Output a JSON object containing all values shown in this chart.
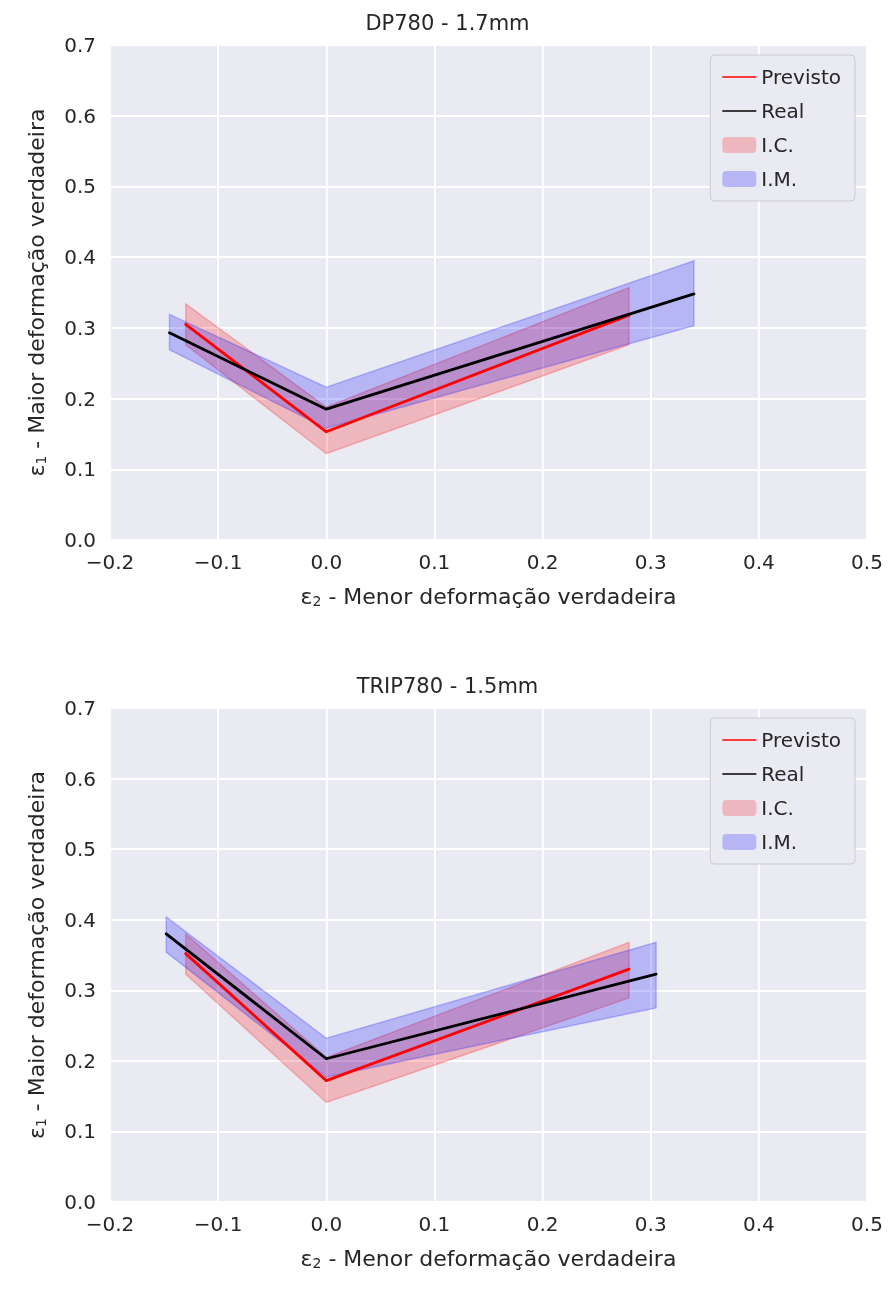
{
  "chart_data": [
    {
      "type": "line",
      "title": "DP780 - 1.7mm",
      "xlabel": "ε$_{2}$ - Menor deformação verdadeira",
      "ylabel": "ε$_{1}$ - Maior deformação verdadeira",
      "xlim": [
        -0.2,
        0.5
      ],
      "ylim": [
        0,
        0.7
      ],
      "grid": true,
      "legend": "top right",
      "marker": "none",
      "line_style": "solid",
      "xticks": [
        {
          "value": -0.2,
          "label": "−0.2"
        },
        {
          "value": -0.1,
          "label": "−0.1"
        },
        {
          "value": 0,
          "label": "0.0"
        },
        {
          "value": 0.1,
          "label": "0.1"
        },
        {
          "value": 0.2,
          "label": "0.2"
        },
        {
          "value": 0.3,
          "label": "0.3"
        },
        {
          "value": 0.4,
          "label": "0.4"
        },
        {
          "value": 0.5,
          "label": "0.5"
        }
      ],
      "yticks": [
        {
          "value": 0,
          "label": "0.0"
        },
        {
          "value": 0.1,
          "label": "0.1"
        },
        {
          "value": 0.2,
          "label": "0.2"
        },
        {
          "value": 0.3,
          "label": "0.3"
        },
        {
          "value": 0.4,
          "label": "0.4"
        },
        {
          "value": 0.5,
          "label": "0.5"
        },
        {
          "value": 0.6,
          "label": "0.6"
        },
        {
          "value": 0.7,
          "label": "0.7"
        }
      ],
      "series": [
        {
          "name": "Previsto",
          "type": "line",
          "color": "#ff0000",
          "x": [
            -0.13,
            0,
            0.28
          ],
          "values": [
            0.305,
            0.153,
            0.318
          ]
        },
        {
          "name": "Real",
          "type": "line",
          "color": "#000000",
          "x": [
            -0.145,
            0,
            0.34
          ],
          "values": [
            0.293,
            0.185,
            0.348
          ]
        },
        {
          "name": "I.C.",
          "type": "area",
          "color": "#ff0000",
          "x": [
            -0.13,
            0,
            0.28
          ],
          "values": [
            null,
            null,
            null
          ],
          "lower": [
            0.276,
            0.122,
            0.276
          ],
          "upper": [
            0.334,
            0.188,
            0.357
          ]
        },
        {
          "name": "I.M.",
          "type": "area",
          "color": "#0000ff",
          "x": [
            -0.145,
            0,
            0.34
          ],
          "values": [
            null,
            null,
            null
          ],
          "lower": [
            0.269,
            0.158,
            0.303
          ],
          "upper": [
            0.319,
            0.216,
            0.395
          ]
        }
      ]
    },
    {
      "type": "line",
      "title": "TRIP780 - 1.5mm",
      "xlabel": "ε$_{2}$ - Menor deformação verdadeira",
      "ylabel": "ε$_{1}$ - Maior deformação verdadeira",
      "xlim": [
        -0.2,
        0.5
      ],
      "ylim": [
        0,
        0.7
      ],
      "grid": true,
      "legend": "top right",
      "marker": "none",
      "line_style": "solid",
      "xticks": [
        {
          "value": -0.2,
          "label": "−0.2"
        },
        {
          "value": -0.1,
          "label": "−0.1"
        },
        {
          "value": 0,
          "label": "0.0"
        },
        {
          "value": 0.1,
          "label": "0.1"
        },
        {
          "value": 0.2,
          "label": "0.2"
        },
        {
          "value": 0.3,
          "label": "0.3"
        },
        {
          "value": 0.4,
          "label": "0.4"
        },
        {
          "value": 0.5,
          "label": "0.5"
        }
      ],
      "yticks": [
        {
          "value": 0,
          "label": "0.0"
        },
        {
          "value": 0.1,
          "label": "0.1"
        },
        {
          "value": 0.2,
          "label": "0.2"
        },
        {
          "value": 0.3,
          "label": "0.3"
        },
        {
          "value": 0.4,
          "label": "0.4"
        },
        {
          "value": 0.5,
          "label": "0.5"
        },
        {
          "value": 0.6,
          "label": "0.6"
        },
        {
          "value": 0.7,
          "label": "0.7"
        }
      ],
      "series": [
        {
          "name": "Previsto",
          "type": "line",
          "color": "#ff0000",
          "x": [
            -0.13,
            0,
            0.28
          ],
          "values": [
            0.352,
            0.172,
            0.33
          ]
        },
        {
          "name": "Real",
          "type": "line",
          "color": "#000000",
          "x": [
            -0.148,
            0,
            0.305
          ],
          "values": [
            0.38,
            0.203,
            0.323
          ]
        },
        {
          "name": "I.C.",
          "type": "area",
          "color": "#ff0000",
          "x": [
            -0.13,
            0,
            0.28
          ],
          "values": [
            null,
            null,
            null
          ],
          "lower": [
            0.323,
            0.141,
            0.289
          ],
          "upper": [
            0.38,
            0.205,
            0.368
          ]
        },
        {
          "name": "I.M.",
          "type": "area",
          "color": "#0000ff",
          "x": [
            -0.148,
            0,
            0.305
          ],
          "values": [
            null,
            null,
            null
          ],
          "lower": [
            0.354,
            0.177,
            0.275
          ],
          "upper": [
            0.404,
            0.232,
            0.368
          ]
        }
      ]
    }
  ]
}
